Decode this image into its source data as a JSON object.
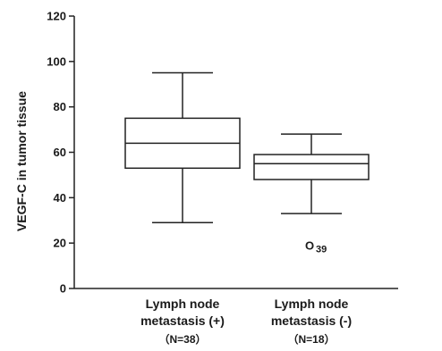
{
  "chart_data": {
    "type": "box",
    "ylabel": "VEGF-C in tumor tissue",
    "xlabel": "",
    "ylim": [
      0,
      120
    ],
    "yticks": [
      0,
      20,
      40,
      60,
      80,
      100,
      120
    ],
    "grid": false,
    "categories": [
      {
        "label_lines": [
          "Lymph node",
          "metastasis (+)"
        ],
        "n_label": "（N=38）",
        "whisker_low": 29,
        "q1": 53,
        "median": 64,
        "q3": 75,
        "whisker_high": 95,
        "outliers": []
      },
      {
        "label_lines": [
          "Lymph node",
          "metastasis (-)"
        ],
        "n_label": "（N=18）",
        "whisker_low": 33,
        "q1": 48,
        "median": 55,
        "q3": 59,
        "whisker_high": 68,
        "outliers": [
          {
            "value": 19,
            "symbol": "O",
            "label": "39"
          }
        ]
      }
    ]
  }
}
